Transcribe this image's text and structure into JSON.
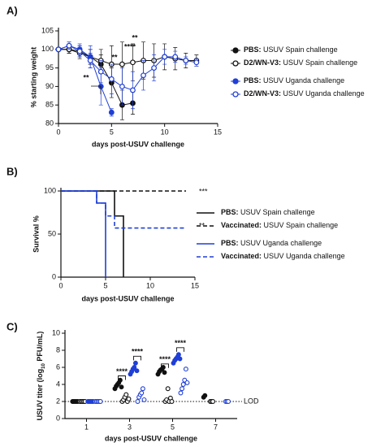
{
  "chart_data": [
    {
      "type": "line",
      "panel_label": "A)",
      "ylabel": "% starting weight",
      "xlabel": "days post-USUV challenge",
      "xlim": [
        0,
        15
      ],
      "xticks": [
        0,
        5,
        10,
        15
      ],
      "ylim": [
        80,
        105
      ],
      "yticks": [
        80,
        85,
        90,
        95,
        100,
        105
      ],
      "x": [
        0,
        1,
        2,
        3,
        4,
        5,
        6,
        7,
        8,
        9,
        10,
        11,
        12,
        13
      ],
      "annotations": [
        "**",
        "**",
        "****",
        "**"
      ],
      "series": [
        {
          "label_bold": "PBS:",
          "name": "USUV Spain challenge",
          "color": "#111111",
          "filled": true,
          "values": [
            100,
            100,
            99.5,
            98,
            96,
            91,
            85,
            85.5,
            null,
            null,
            null,
            null,
            null,
            null
          ],
          "errors": [
            0.5,
            1,
            1.5,
            2,
            2.5,
            4,
            4,
            3,
            null,
            null,
            null,
            null,
            null,
            null
          ]
        },
        {
          "label_bold": "D2/WN-V3:",
          "name": "USUV Spain challenge",
          "color": "#111111",
          "filled": false,
          "values": [
            100,
            100,
            99,
            98,
            97,
            96,
            96,
            96.5,
            97,
            97,
            98,
            97.5,
            97,
            97
          ],
          "errors": [
            0.5,
            1,
            1.5,
            2,
            3,
            5,
            6,
            5,
            5,
            4.5,
            3.5,
            3,
            2,
            1.5
          ]
        },
        {
          "label_bold": "PBS:",
          "name": "USUV Uganda challenge",
          "color": "#1f3fd6",
          "filled": true,
          "values": [
            100,
            101,
            100,
            98,
            90,
            83,
            null,
            null,
            null,
            null,
            null,
            null,
            null,
            null
          ],
          "errors": [
            0.5,
            1,
            1.5,
            3,
            5,
            1,
            null,
            null,
            null,
            null,
            null,
            null,
            null,
            null
          ]
        },
        {
          "label_bold": "D2/WN-V3:",
          "name": "USUV Uganda challenge",
          "color": "#1f3fd6",
          "filled": false,
          "values": [
            100,
            101,
            99.5,
            97,
            94,
            92,
            90,
            89,
            93,
            95,
            98,
            98,
            97,
            96.5
          ],
          "errors": [
            0.5,
            1,
            1.5,
            2,
            3,
            4,
            5,
            5,
            4,
            3.5,
            2,
            1.5,
            1,
            1
          ]
        }
      ]
    },
    {
      "type": "step",
      "panel_label": "B)",
      "ylabel": "Survival %",
      "xlabel": "days post-USUV challenge",
      "xlim": [
        0,
        15
      ],
      "xticks": [
        0,
        5,
        10,
        15
      ],
      "ylim": [
        0,
        100
      ],
      "yticks": [
        0,
        50,
        100
      ],
      "annotations": [
        "***",
        "**"
      ],
      "series": [
        {
          "label_bold": "PBS:",
          "name": "USUV Spain challenge",
          "color": "#111111",
          "dashed": false,
          "x": [
            0,
            6,
            7
          ],
          "values": [
            100,
            71,
            0
          ]
        },
        {
          "label_bold": "Vaccinated:",
          "name": "USUV Spain challenge",
          "color": "#111111",
          "dashed": true,
          "x": [
            0,
            14
          ],
          "values": [
            100,
            100
          ]
        },
        {
          "label_bold": "PBS:",
          "name": "USUV Uganda challenge",
          "color": "#1f3fd6",
          "dashed": false,
          "x": [
            0,
            4,
            5
          ],
          "values": [
            100,
            86,
            0
          ]
        },
        {
          "label_bold": "Vaccinated:",
          "name": "USUV Uganda challenge",
          "color": "#1f3fd6",
          "dashed": true,
          "x": [
            0,
            4,
            5,
            6,
            14
          ],
          "values": [
            100,
            86,
            71,
            57,
            57
          ]
        }
      ]
    },
    {
      "type": "dot",
      "panel_label": "C)",
      "ylabel": [
        "USUV titer (log",
        "10",
        " PFU/mL)"
      ],
      "xlabel": "days post-USUV challenge",
      "categories": [
        "1",
        "3",
        "5",
        "7"
      ],
      "ylim": [
        0,
        10
      ],
      "yticks": [
        0,
        2,
        4,
        6,
        8,
        10
      ],
      "lod": 2,
      "lod_label": "LOD",
      "annotations": [
        "****",
        "****",
        "****",
        "****"
      ],
      "series": [
        {
          "color": "#111111",
          "filled": true,
          "values": [
            [
              2,
              2,
              2,
              2,
              2
            ],
            [
              3.5,
              3.8,
              4,
              4.2,
              4.5,
              3.7
            ],
            [
              5.2,
              5.5,
              5.7,
              5.8,
              6,
              5.4
            ],
            [
              2.5,
              2.7
            ]
          ]
        },
        {
          "color": "#111111",
          "filled": false,
          "values": [
            [
              2,
              2,
              2,
              2,
              2
            ],
            [
              2,
              2.2,
              2.5,
              2.8,
              2,
              2.3
            ],
            [
              2,
              2.2,
              3.5,
              2,
              2.4,
              2
            ],
            [
              2,
              2,
              2
            ]
          ]
        },
        {
          "color": "#1f3fd6",
          "filled": true,
          "values": [
            [
              2,
              2,
              2,
              2,
              2
            ],
            [
              5.2,
              5.5,
              5.8,
              6,
              6.5,
              5.6
            ],
            [
              6.5,
              6.8,
              7,
              7.2,
              7.5,
              7
            ]
          ],
          "dummy": null
        },
        {
          "color": "#1f3fd6",
          "filled": false,
          "values": [
            [
              2,
              2,
              2,
              2,
              2
            ],
            [
              2,
              2.5,
              2.8,
              3,
              3.5,
              2.2
            ],
            [
              3,
              3.5,
              4,
              4.5,
              5.8,
              4.2
            ],
            [
              2,
              2,
              2
            ]
          ]
        }
      ]
    }
  ]
}
